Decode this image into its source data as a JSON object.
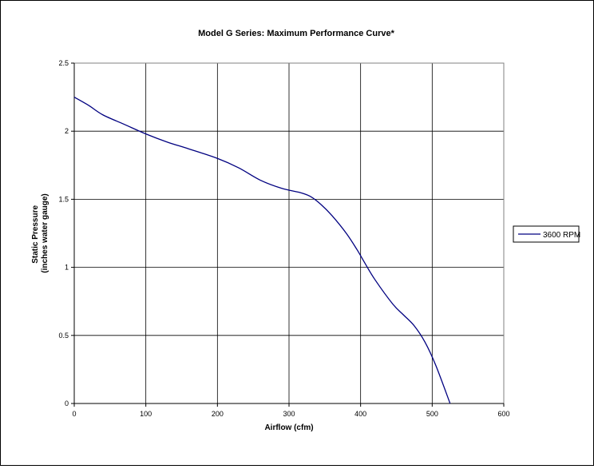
{
  "chart_data": {
    "type": "line",
    "title": "Model G Series: Maximum Performance Curve*",
    "xlabel": "Airflow (cfm)",
    "ylabel_lines": [
      "Static Pressure",
      "(inches water gauge)"
    ],
    "xlim": [
      0,
      600
    ],
    "ylim": [
      0,
      2.5
    ],
    "x_ticks": [
      0,
      100,
      200,
      300,
      400,
      500,
      600
    ],
    "y_ticks": [
      0,
      0.5,
      1,
      1.5,
      2,
      2.5
    ],
    "x_tick_labels": [
      "0",
      "100",
      "200",
      "300",
      "400",
      "500",
      "600"
    ],
    "y_tick_labels": [
      "0",
      "0.5",
      "1",
      "1.5",
      "2",
      "2.5"
    ],
    "grid": true,
    "legend_position": "right",
    "series": [
      {
        "name": "3600 RPM",
        "color": "#000080",
        "points": [
          [
            0,
            2.25
          ],
          [
            20,
            2.19
          ],
          [
            40,
            2.12
          ],
          [
            70,
            2.05
          ],
          [
            100,
            1.98
          ],
          [
            130,
            1.92
          ],
          [
            160,
            1.87
          ],
          [
            200,
            1.8
          ],
          [
            230,
            1.73
          ],
          [
            260,
            1.64
          ],
          [
            290,
            1.58
          ],
          [
            315,
            1.55
          ],
          [
            330,
            1.52
          ],
          [
            345,
            1.46
          ],
          [
            360,
            1.38
          ],
          [
            380,
            1.25
          ],
          [
            395,
            1.13
          ],
          [
            405,
            1.04
          ],
          [
            420,
            0.91
          ],
          [
            445,
            0.73
          ],
          [
            460,
            0.65
          ],
          [
            475,
            0.57
          ],
          [
            490,
            0.45
          ],
          [
            505,
            0.28
          ],
          [
            525,
            0.0
          ]
        ]
      }
    ]
  }
}
